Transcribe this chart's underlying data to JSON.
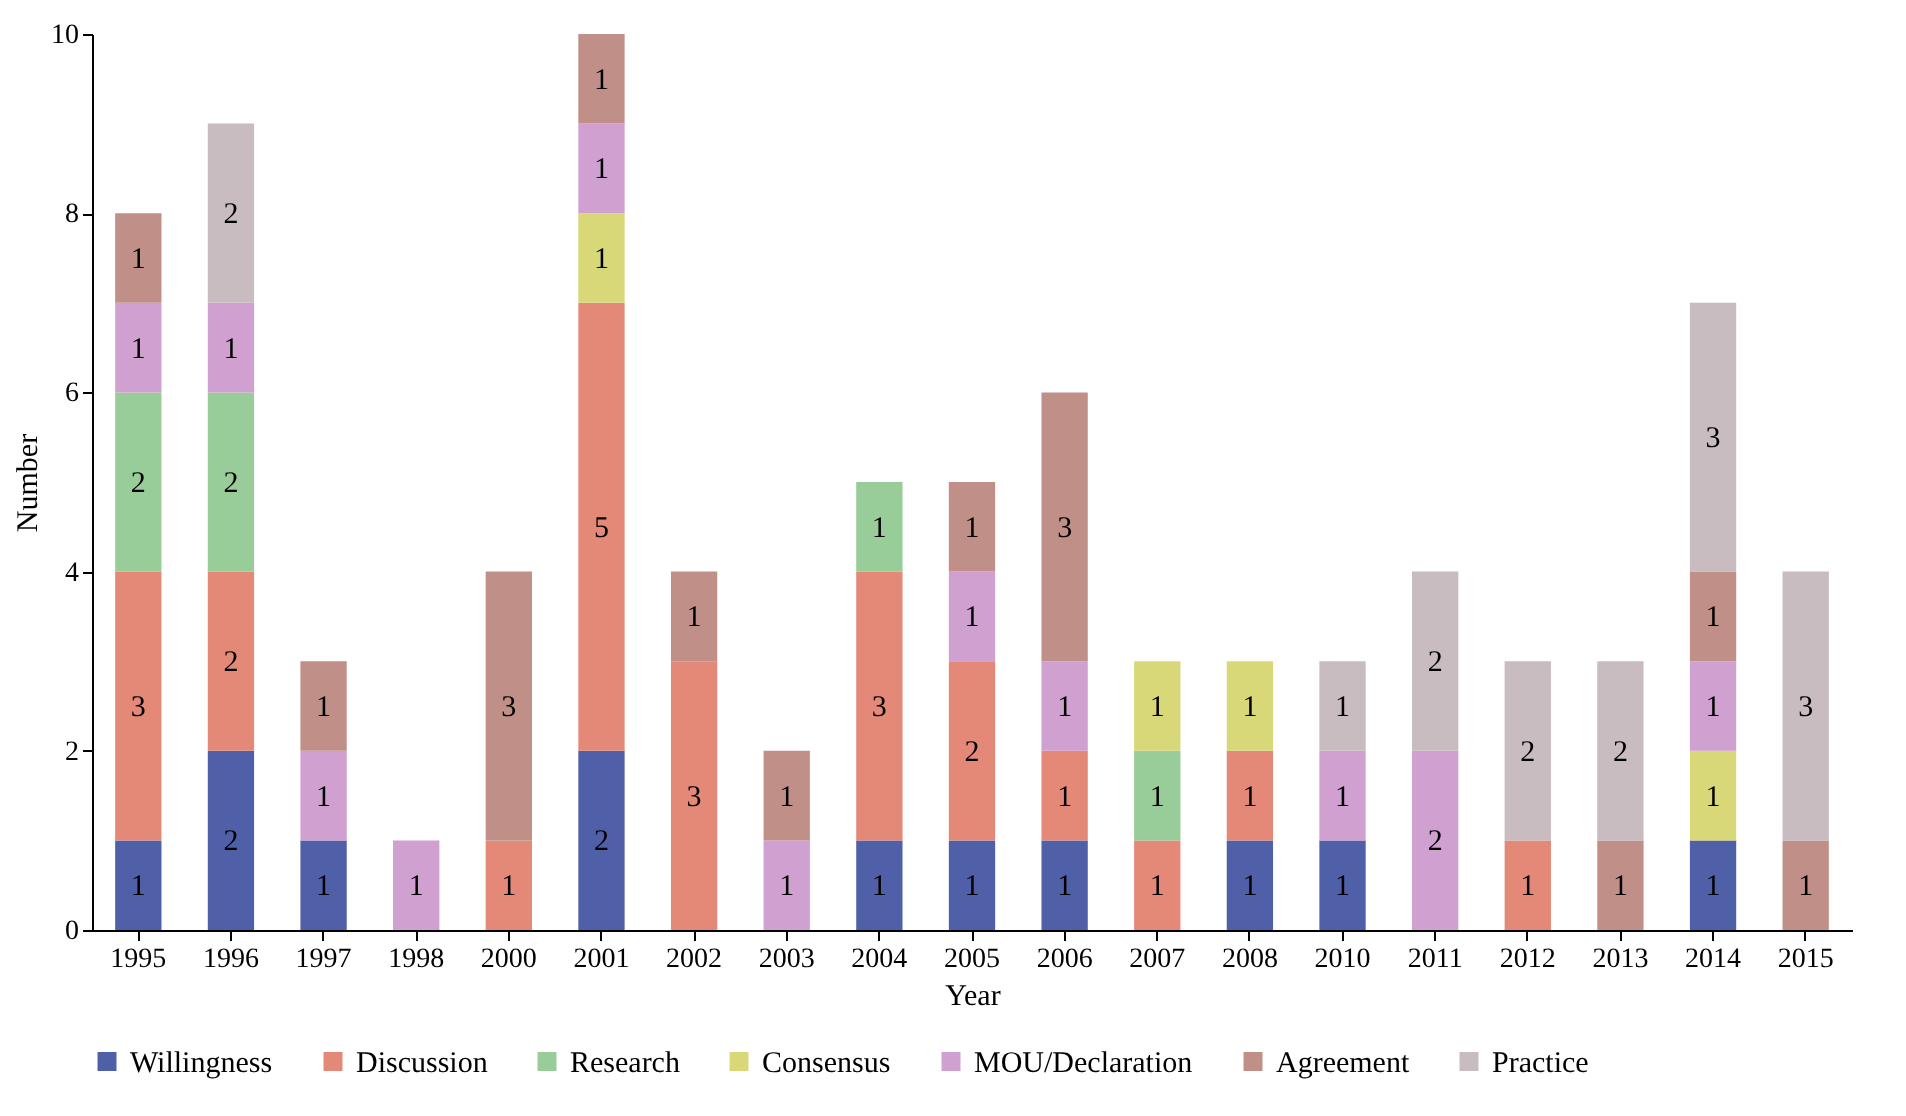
{
  "chart_data": {
    "type": "bar",
    "stacked": true,
    "xlabel": "Year",
    "ylabel": "Number",
    "categories": [
      "1995",
      "1996",
      "1997",
      "1998",
      "2000",
      "2001",
      "2002",
      "2003",
      "2004",
      "2005",
      "2006",
      "2007",
      "2008",
      "2010",
      "2011",
      "2012",
      "2013",
      "2014",
      "2015"
    ],
    "ylim": [
      0,
      10
    ],
    "yticks": [
      0,
      2,
      4,
      6,
      8,
      10
    ],
    "grid": false,
    "legend": "bottom",
    "data_labels": true,
    "series": [
      {
        "name": "Willingness",
        "color": "#5060a8",
        "values": [
          1,
          2,
          1,
          null,
          null,
          2,
          null,
          null,
          1,
          1,
          1,
          null,
          1,
          1,
          null,
          null,
          null,
          1,
          null
        ]
      },
      {
        "name": "Discussion",
        "color": "#e48878",
        "values": [
          3,
          2,
          null,
          null,
          1,
          5,
          3,
          null,
          3,
          2,
          1,
          1,
          1,
          null,
          null,
          1,
          null,
          null,
          null
        ]
      },
      {
        "name": "Research",
        "color": "#98cc98",
        "values": [
          2,
          2,
          null,
          null,
          null,
          null,
          null,
          null,
          1,
          null,
          null,
          1,
          null,
          null,
          null,
          null,
          null,
          null,
          null
        ]
      },
      {
        "name": "Consensus",
        "color": "#d8d878",
        "values": [
          null,
          null,
          null,
          null,
          null,
          1,
          null,
          null,
          null,
          null,
          null,
          1,
          1,
          null,
          null,
          null,
          null,
          1,
          null
        ]
      },
      {
        "name": "MOU/Declaration",
        "color": "#d0a0d0",
        "values": [
          1,
          1,
          1,
          1,
          null,
          1,
          null,
          1,
          null,
          1,
          1,
          null,
          null,
          1,
          2,
          null,
          null,
          1,
          null
        ]
      },
      {
        "name": "Agreement",
        "color": "#c09088",
        "values": [
          1,
          null,
          1,
          null,
          3,
          1,
          1,
          1,
          null,
          1,
          3,
          null,
          null,
          null,
          null,
          null,
          1,
          1,
          1
        ]
      },
      {
        "name": "Practice",
        "color": "#c8bcc0",
        "values": [
          null,
          2,
          null,
          null,
          null,
          null,
          null,
          null,
          null,
          null,
          null,
          null,
          null,
          1,
          2,
          2,
          2,
          3,
          3
        ]
      }
    ]
  }
}
